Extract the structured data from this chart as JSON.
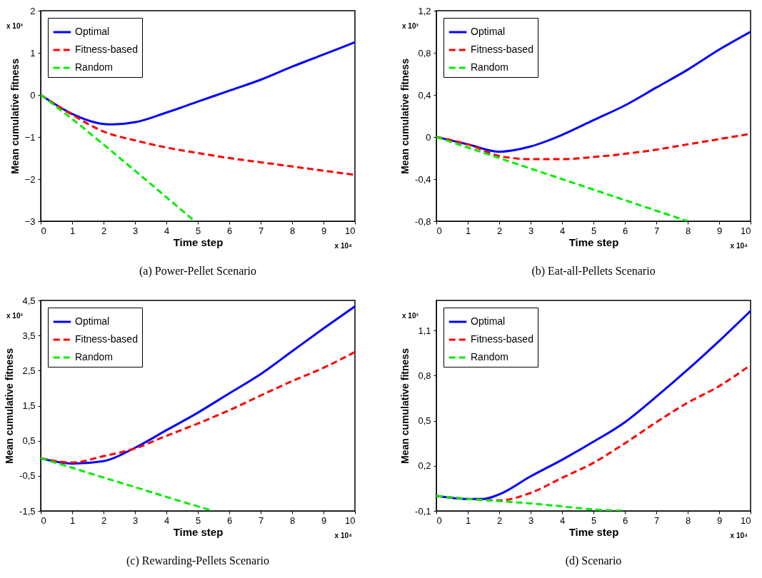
{
  "chart_data": [
    {
      "type": "line",
      "title": "(a)  Power-Pellet Scenario",
      "xlabel": "Time step",
      "ylabel": "Mean cumulative fitness",
      "annotations": [
        "x 10³",
        "x 10⁴"
      ],
      "xlim": [
        0,
        10
      ],
      "xticks": [
        0,
        1,
        2,
        3,
        4,
        5,
        6,
        7,
        8,
        9,
        10
      ],
      "ylim": [
        -3,
        2
      ],
      "yticks": [
        -3,
        -2,
        -1,
        0,
        1,
        2
      ],
      "grid": false,
      "legend": "top left",
      "marker": "none",
      "x": [
        0,
        1,
        2,
        2.3,
        3,
        4,
        5,
        6,
        7,
        8,
        9,
        10
      ],
      "series": [
        {
          "name": "Optimal",
          "color": "#0000ff",
          "line_style": "solid",
          "values": [
            0,
            -0.45,
            -0.69,
            -0.7,
            -0.65,
            -0.42,
            -0.16,
            0.1,
            0.36,
            0.67,
            0.96,
            1.25
          ]
        },
        {
          "name": "Fitness-based",
          "color": "#ff0000",
          "line_style": "dashed",
          "x": [
            0,
            1,
            2,
            3,
            4,
            5,
            6,
            7,
            8,
            9,
            10
          ],
          "values": [
            0,
            -0.47,
            -0.87,
            -1.08,
            -1.25,
            -1.38,
            -1.5,
            -1.6,
            -1.7,
            -1.8,
            -1.9
          ]
        },
        {
          "name": "Random",
          "color": "#00ee00",
          "line_style": "dashed",
          "x": [
            0,
            1,
            2,
            3,
            4,
            4.9
          ],
          "values": [
            0,
            -0.57,
            -1.18,
            -1.8,
            -2.43,
            -3
          ]
        }
      ]
    },
    {
      "type": "line",
      "title": "(b)  Eat-all-Pellets Scenario",
      "xlabel": "Time step",
      "ylabel": "Mean cumulative fitness",
      "annotations": [
        "x 10³",
        "x 10⁴"
      ],
      "xlim": [
        0,
        10
      ],
      "xticks": [
        0,
        1,
        2,
        3,
        4,
        5,
        6,
        7,
        8,
        9,
        10
      ],
      "ylim": [
        -0.8,
        1.2
      ],
      "yticks": [
        {
          "value": -0.8,
          "label": "-0,8"
        },
        {
          "value": -0.4,
          "label": "-0,4"
        },
        0,
        {
          "value": 0.4,
          "label": "0,4"
        },
        {
          "value": 0.8,
          "label": "0,8"
        },
        {
          "value": 1.2,
          "label": "1,2"
        }
      ],
      "grid": false,
      "legend": "top left",
      "marker": "none",
      "x": [
        0,
        1,
        2,
        3,
        4,
        5,
        6,
        7,
        8,
        9,
        10
      ],
      "series": [
        {
          "name": "Optimal",
          "color": "#0000ff",
          "line_style": "solid",
          "values": [
            0,
            -0.07,
            -0.14,
            -0.09,
            0.02,
            0.16,
            0.3,
            0.47,
            0.64,
            0.83,
            1.0
          ]
        },
        {
          "name": "Fitness-based",
          "color": "#ff0000",
          "line_style": "dashed",
          "values": [
            0,
            -0.07,
            -0.18,
            -0.21,
            -0.21,
            -0.19,
            -0.16,
            -0.12,
            -0.07,
            -0.02,
            0.03
          ]
        },
        {
          "name": "Random",
          "color": "#00ee00",
          "line_style": "dashed",
          "x": [
            0,
            1,
            2,
            3,
            4,
            5,
            6,
            7,
            8
          ],
          "values": [
            0,
            -0.1,
            -0.2,
            -0.3,
            -0.4,
            -0.5,
            -0.6,
            -0.7,
            -0.8
          ]
        }
      ]
    },
    {
      "type": "line",
      "title": "(c)  Rewarding-Pellets Scenario",
      "xlabel": "Time step",
      "ylabel": "Mean cumulative fitness",
      "annotations": [
        "x 10³",
        "x 10⁴"
      ],
      "xlim": [
        0,
        10
      ],
      "xticks": [
        0,
        1,
        2,
        3,
        4,
        5,
        6,
        7,
        8,
        9,
        10
      ],
      "ylim": [
        -1.5,
        4.5
      ],
      "yticks": [
        {
          "value": -1.5,
          "label": "-1,5"
        },
        {
          "value": -0.5,
          "label": "-0,5"
        },
        {
          "value": 0.5,
          "label": "0,5"
        },
        {
          "value": 1.5,
          "label": "1,5"
        },
        {
          "value": 2.5,
          "label": "2,5"
        },
        {
          "value": 3.5,
          "label": "3,5"
        },
        {
          "value": 4.5,
          "label": "4,5"
        }
      ],
      "grid": false,
      "legend": "top left",
      "marker": "none",
      "x": [
        0,
        1,
        2,
        3,
        4,
        5,
        6,
        7,
        8,
        9,
        10
      ],
      "series": [
        {
          "name": "Optimal",
          "color": "#0000ff",
          "line_style": "solid",
          "values": [
            0,
            -0.15,
            -0.08,
            0.3,
            0.8,
            1.3,
            1.85,
            2.4,
            3.05,
            3.7,
            4.33
          ]
        },
        {
          "name": "Fitness-based",
          "color": "#ff0000",
          "line_style": "dashed",
          "values": [
            0,
            -0.12,
            0.06,
            0.28,
            0.64,
            0.99,
            1.37,
            1.79,
            2.2,
            2.58,
            3.03
          ]
        },
        {
          "name": "Random",
          "color": "#00ee00",
          "line_style": "dashed",
          "x": [
            0,
            1,
            2,
            3,
            4,
            5,
            5.5
          ],
          "values": [
            0,
            -0.27,
            -0.55,
            -0.82,
            -1.1,
            -1.37,
            -1.5
          ]
        }
      ]
    },
    {
      "type": "line",
      "title": "(d)  Scenario",
      "xlabel": "Time step",
      "ylabel": "Mean cumulative fitness",
      "annotations": [
        "x 10³",
        "x 10⁴"
      ],
      "xlim": [
        0,
        10
      ],
      "xticks": [
        0,
        1,
        2,
        3,
        4,
        5,
        6,
        7,
        8,
        9,
        10
      ],
      "ylim": [
        -0.1,
        1.3
      ],
      "yticks": [
        {
          "value": -0.1,
          "label": "-0,1"
        },
        {
          "value": 0.2,
          "label": "0,2"
        },
        {
          "value": 0.5,
          "label": "0,5"
        },
        {
          "value": 0.8,
          "label": "0,8"
        },
        {
          "value": 1.1,
          "label": "1,1"
        }
      ],
      "grid": false,
      "legend": "top left",
      "marker": "none",
      "x": [
        0,
        1,
        1.5,
        2,
        3,
        4,
        5,
        6,
        7,
        8,
        9,
        10
      ],
      "series": [
        {
          "name": "Optimal",
          "color": "#0000ff",
          "line_style": "solid",
          "values": [
            0,
            -0.02,
            -0.02,
            0.01,
            0.13,
            0.24,
            0.36,
            0.49,
            0.66,
            0.84,
            1.03,
            1.23
          ]
        },
        {
          "name": "Fitness-based",
          "color": "#ff0000",
          "line_style": "dashed",
          "x": [
            0,
            1,
            2,
            3,
            4,
            5,
            6,
            7,
            8,
            9,
            10
          ],
          "values": [
            0,
            -0.02,
            -0.03,
            0.02,
            0.12,
            0.22,
            0.35,
            0.49,
            0.62,
            0.73,
            0.87
          ]
        },
        {
          "name": "Random",
          "color": "#00ee00",
          "line_style": "dashed",
          "x": [
            0,
            1,
            2,
            3,
            4,
            5,
            6
          ],
          "values": [
            0,
            -0.02,
            -0.035,
            -0.05,
            -0.07,
            -0.09,
            -0.1
          ]
        }
      ]
    }
  ]
}
